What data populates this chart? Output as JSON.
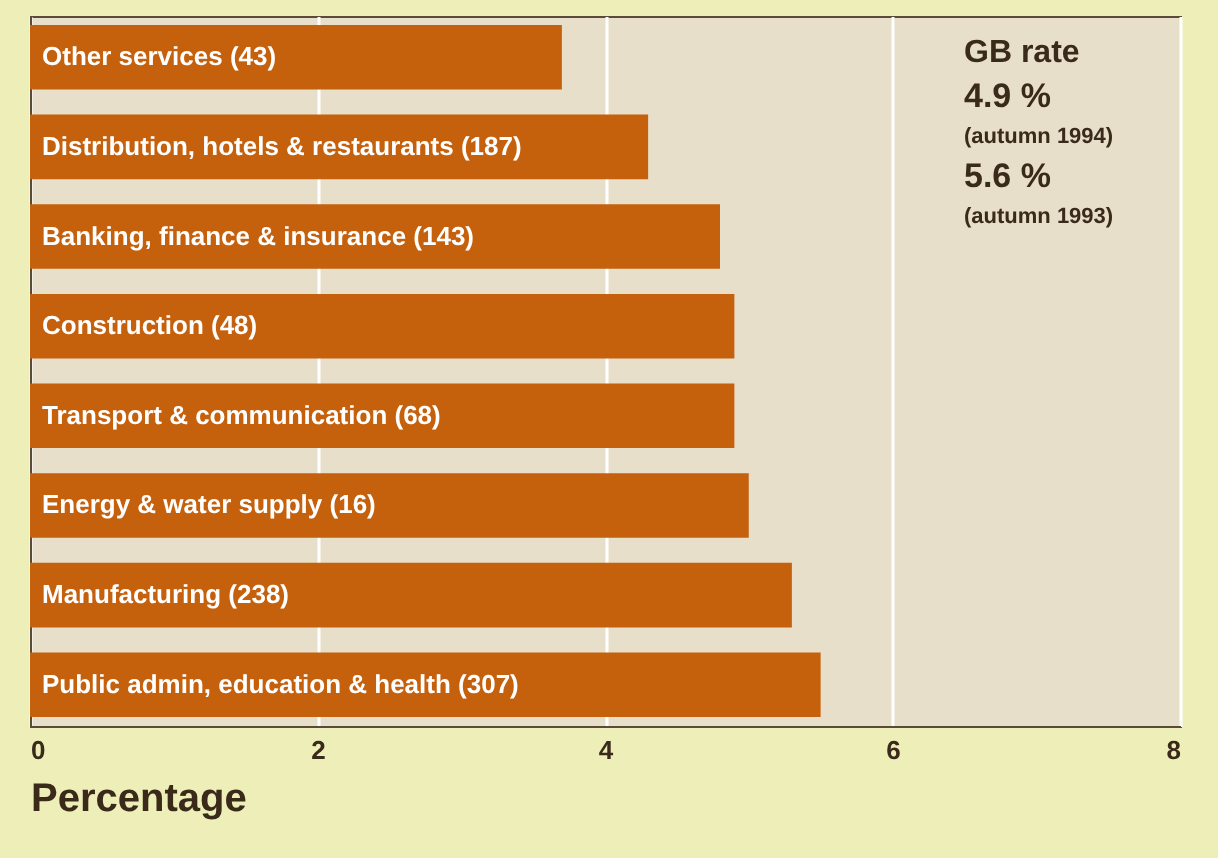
{
  "chart_data": {
    "type": "bar",
    "orientation": "horizontal",
    "xlabel": "Percentage",
    "categories": [
      "Other services (43)",
      "Distribution, hotels & restaurants (187)",
      "Banking, finance & insurance (143)",
      "Construction (48)",
      "Transport & communication (68)",
      "Energy & water supply (16)",
      "Manufacturing (238)",
      "Public admin, education & health (307)"
    ],
    "values": [
      3.7,
      4.3,
      4.8,
      4.9,
      4.9,
      5.0,
      5.3,
      5.5
    ],
    "color": "#c5600c",
    "xlim": [
      0,
      8
    ],
    "xticks": [
      0,
      2,
      4,
      6,
      8
    ],
    "grid": "x",
    "annotations": [
      "GB rate",
      "4.9 %",
      "(autumn 1994)",
      "5.6 %",
      "(autumn 1993)"
    ]
  }
}
